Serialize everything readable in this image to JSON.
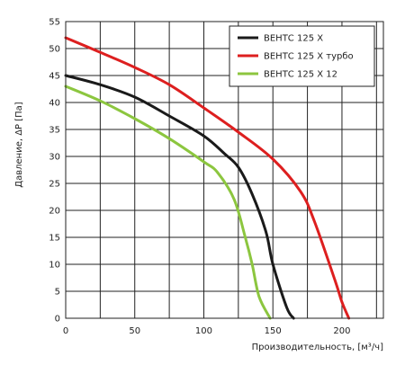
{
  "chart_data": {
    "type": "line",
    "xlabel": "Производительность, [м³/ч]",
    "ylabel": "Давление, ΔP [Па]",
    "xlim": [
      0,
      230
    ],
    "ylim": [
      0,
      55
    ],
    "x_ticks": [
      0,
      50,
      100,
      150,
      200
    ],
    "y_ticks": [
      0,
      5,
      10,
      15,
      20,
      25,
      30,
      35,
      40,
      45,
      50,
      55
    ],
    "grid": true,
    "legend_position": "top-right",
    "series": [
      {
        "name": "ВЕНТС 125 Х",
        "color": "#1a1a1a",
        "points": [
          [
            0,
            45
          ],
          [
            25,
            43.3
          ],
          [
            50,
            41
          ],
          [
            75,
            37.5
          ],
          [
            100,
            33.8
          ],
          [
            115,
            30.5
          ],
          [
            125,
            28
          ],
          [
            135,
            23
          ],
          [
            145,
            16
          ],
          [
            150,
            10
          ],
          [
            160,
            2
          ],
          [
            165,
            0
          ]
        ]
      },
      {
        "name": "ВЕНТС 125 Х турбо",
        "color": "#dd1f1f",
        "points": [
          [
            0,
            52
          ],
          [
            25,
            49.3
          ],
          [
            50,
            46.5
          ],
          [
            75,
            43.3
          ],
          [
            100,
            39
          ],
          [
            125,
            34.5
          ],
          [
            150,
            29.5
          ],
          [
            170,
            23.5
          ],
          [
            180,
            18
          ],
          [
            195,
            7
          ],
          [
            200,
            3
          ],
          [
            205,
            0
          ]
        ]
      },
      {
        "name": "ВЕНТС 125 Х 12",
        "color": "#8cc63f",
        "points": [
          [
            0,
            43
          ],
          [
            25,
            40.3
          ],
          [
            50,
            37
          ],
          [
            75,
            33.3
          ],
          [
            100,
            29
          ],
          [
            110,
            27
          ],
          [
            122,
            22
          ],
          [
            130,
            15
          ],
          [
            135,
            10
          ],
          [
            140,
            4
          ],
          [
            148,
            0
          ]
        ]
      }
    ]
  }
}
